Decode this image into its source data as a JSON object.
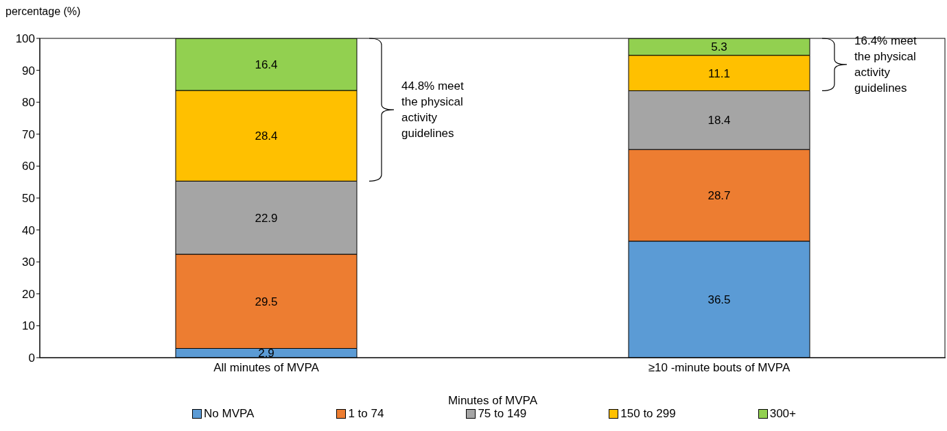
{
  "chart_data": {
    "type": "bar",
    "stacked": true,
    "ylabel": "percentage (%)",
    "xlabel": "Minutes of MVPA",
    "categories": [
      "All minutes of MVPA",
      "≥10 -minute bouts of MVPA"
    ],
    "series": [
      {
        "name": "No MVPA",
        "color": "#5b9bd5",
        "values": [
          2.9,
          36.5
        ]
      },
      {
        "name": "1 to 74",
        "color": "#ed7d31",
        "values": [
          29.5,
          28.7
        ]
      },
      {
        "name": "75 to 149",
        "color": "#a5a5a5",
        "values": [
          22.9,
          18.4
        ]
      },
      {
        "name": "150 to 299",
        "color": "#ffc000",
        "values": [
          28.4,
          11.1
        ]
      },
      {
        "name": "300+",
        "color": "#92d050",
        "values": [
          16.4,
          5.3
        ]
      }
    ],
    "ylim": [
      0,
      100
    ],
    "yticks": [
      0,
      10,
      20,
      30,
      40,
      50,
      60,
      70,
      80,
      90,
      100
    ],
    "grid": false,
    "legend": "bottom",
    "data_labels": true,
    "annotations": [
      "44.8% meet the physical activity guidelines",
      "16.4% meet the physical activity guidelines"
    ]
  }
}
